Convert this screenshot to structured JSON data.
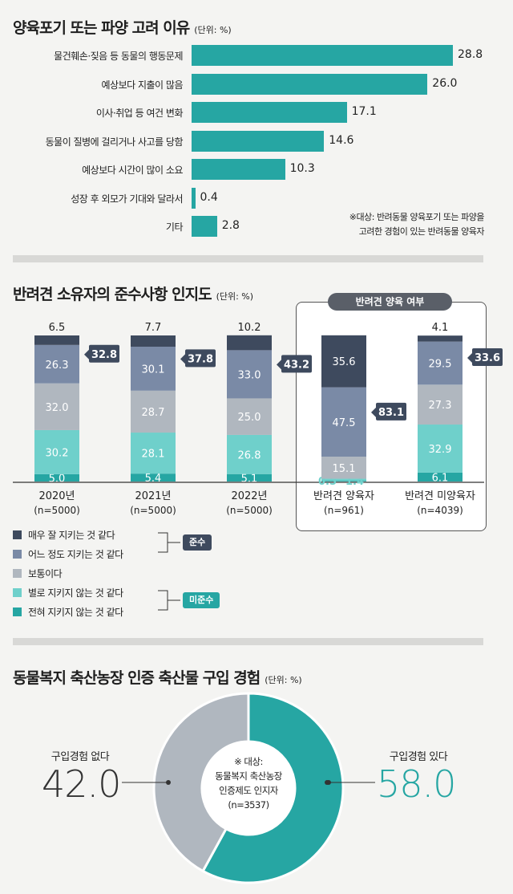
{
  "section1": {
    "title": "양육포기 또는 파양 고려 이유",
    "unit": "(단위: %)",
    "note_line1": "※대상: 반려동물 양육포기 또는 파양을",
    "note_line2": "고려한 경험이 있는 반려동물 양육자",
    "bar_color": "#26a6a3"
  },
  "section2": {
    "title": "반려견 소유자의 준수사항 인지도",
    "unit": "(단위: %)",
    "group_box_label": "반려견 양육 여부",
    "legend": [
      {
        "label": "매우 잘 지키는 것 같다",
        "color": "#3e4a5e"
      },
      {
        "label": "어느 정도 지키는 것 같다",
        "color": "#7a8aa6"
      },
      {
        "label": "보통이다",
        "color": "#b0b7bf"
      },
      {
        "label": "별로 지키지 않는 것 같다",
        "color": "#6fd0cb"
      },
      {
        "label": "전혀 지키지 않는 것 같다",
        "color": "#26a6a3"
      }
    ],
    "tag_comply": "준수",
    "tag_comply_color": "#3e4a5e",
    "tag_noncomply": "미준수",
    "tag_noncomply_color": "#26a6a3"
  },
  "section3": {
    "title": "동물복지 축산농장 인증 축산물 구입 경험",
    "unit": "(단위: %)",
    "left_label": "구입경험 없다",
    "left_value": "42.0",
    "right_label": "구입경험 있다",
    "right_value": "58.0",
    "center_line1": "※ 대상:",
    "center_line2": "동물복지 축산농장",
    "center_line3": "인증제도 인지자",
    "center_line4": "(n=3537)",
    "color_yes": "#26a6a3",
    "color_no": "#b0b7bf"
  },
  "chart_data": [
    {
      "type": "bar",
      "orientation": "horizontal",
      "title": "양육포기 또는 파양 고려 이유",
      "categories": [
        "물건훼손·짖음 등 동물의 행동문제",
        "예상보다 지출이 많음",
        "이사·취업 등 여건 변화",
        "동물이 질병에 걸리거나 사고를 당함",
        "예상보다 시간이 많이 소요",
        "성장 후 외모가 기대와 달라서",
        "기타"
      ],
      "values": [
        28.8,
        26.0,
        17.1,
        14.6,
        10.3,
        0.4,
        2.8
      ],
      "value_labels": [
        "28.8",
        "26.0",
        "17.1",
        "14.6",
        "10.3",
        "0.4",
        "2.8"
      ]
    },
    {
      "type": "bar",
      "stacked": true,
      "title": "반려견 소유자의 준수사항 인지도",
      "categories": [
        "2020년",
        "2021년",
        "2022년",
        "반려견 양육자",
        "반려견 미양육자"
      ],
      "category_sublabels": [
        "(n=5000)",
        "(n=5000)",
        "(n=5000)",
        "(n=961)",
        "(n=4039)"
      ],
      "series": [
        {
          "name": "전혀 지키지 않는 것 같다",
          "values": [
            5.0,
            5.4,
            5.1,
            0.5,
            6.1
          ],
          "labels": [
            "5.0",
            "5.4",
            "5.1",
            "0.5",
            "6.1"
          ]
        },
        {
          "name": "별로 지키지 않는 것 같다",
          "values": [
            30.2,
            28.1,
            26.8,
            1.4,
            32.9
          ],
          "labels": [
            "30.2",
            "28.1",
            "26.8",
            "1.4",
            "32.9"
          ]
        },
        {
          "name": "보통이다",
          "values": [
            32.0,
            28.7,
            25.0,
            15.1,
            27.3
          ],
          "labels": [
            "32.0",
            "28.7",
            "25.0",
            "15.1",
            "27.3"
          ]
        },
        {
          "name": "어느 정도 지키는 것 같다",
          "values": [
            26.3,
            30.1,
            33.0,
            47.5,
            29.5
          ],
          "labels": [
            "26.3",
            "30.1",
            "33.0",
            "47.5",
            "29.5"
          ]
        },
        {
          "name": "매우 잘 지키는 것 같다",
          "values": [
            6.5,
            7.7,
            10.2,
            35.6,
            4.1
          ],
          "labels": [
            "6.5",
            "7.7",
            "10.2",
            "35.6",
            "4.1"
          ]
        }
      ],
      "comply_totals": [
        "32.8",
        "37.8",
        "43.2",
        "83.1",
        "33.6"
      ]
    },
    {
      "type": "pie",
      "title": "동물복지 축산농장 인증 축산물 구입 경험",
      "categories": [
        "구입경험 있다",
        "구입경험 없다"
      ],
      "values": [
        58.0,
        42.0
      ]
    }
  ]
}
